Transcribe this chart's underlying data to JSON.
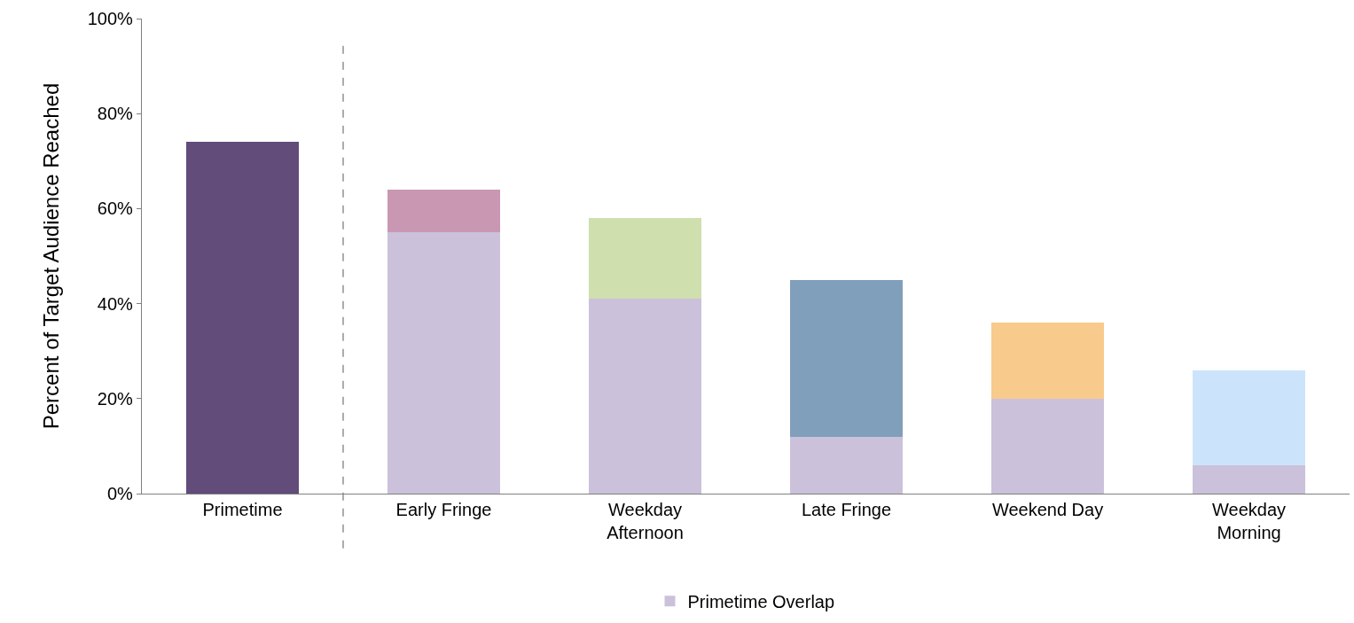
{
  "chart_data": {
    "type": "bar",
    "stacked": true,
    "ylabel": "Percent of Target Audience Reached",
    "categories": [
      "Primetime",
      "Early Fringe",
      "Weekday Afternoon",
      "Late Fringe",
      "Weekend Day",
      "Weekday Morning"
    ],
    "series": [
      {
        "name": "Primetime Overlap",
        "color": "#cbc1db",
        "values": [
          null,
          55,
          41,
          12,
          20,
          6
        ]
      },
      {
        "colors": [
          "#614c7a",
          "#c997b2",
          "#cfdfae",
          "#809fba",
          "#f8ca8c",
          "#cce4fb"
        ],
        "values": [
          74,
          9,
          17,
          33,
          16,
          20
        ]
      }
    ],
    "ylim": [
      0,
      100
    ],
    "yticks": [
      {
        "value": 0,
        "label": "0%"
      },
      {
        "value": 20,
        "label": "20%"
      },
      {
        "value": 40,
        "label": "40%"
      },
      {
        "value": 60,
        "label": "60%"
      },
      {
        "value": 80,
        "label": "80%"
      },
      {
        "value": 100,
        "label": "100%"
      }
    ],
    "grid": false,
    "legend": "bottom"
  }
}
